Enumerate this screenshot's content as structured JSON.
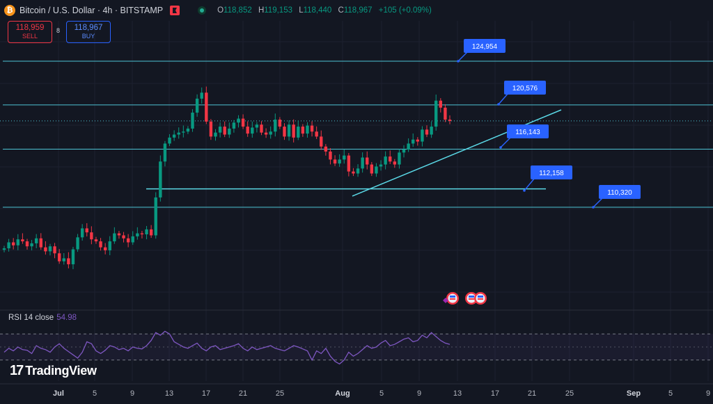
{
  "header": {
    "coin_glyph": "₿",
    "symbol_title": "Bitcoin / U.S. Dollar · 4h · BITSTAMP",
    "ohlc": {
      "o_label": "O",
      "o": "118,852",
      "h_label": "H",
      "h": "119,153",
      "l_label": "L",
      "l": "118,440",
      "c_label": "C",
      "c": "118,967",
      "change": "+105 (+0.09%)"
    }
  },
  "trade": {
    "sell_price": "118,959",
    "sell_label": "SELL",
    "spread": "8",
    "buy_price": "118,967",
    "buy_label": "BUY"
  },
  "rsi": {
    "label": "RSI 14 close",
    "value": "54.98",
    "upper_level": 70,
    "lower_level": 30,
    "series": [
      42,
      48,
      44,
      50,
      46,
      45,
      40,
      52,
      48,
      46,
      42,
      50,
      55,
      48,
      43,
      38,
      33,
      42,
      58,
      55,
      44,
      40,
      45,
      52,
      50,
      46,
      48,
      44,
      50,
      48,
      47,
      52,
      60,
      72,
      68,
      74,
      70,
      58,
      54,
      50,
      48,
      52,
      56,
      48,
      44,
      50,
      52,
      46,
      48,
      50,
      52,
      55,
      48,
      44,
      50,
      46,
      48,
      50,
      52,
      48,
      46,
      44,
      48,
      52,
      50,
      47,
      44,
      30,
      44,
      40,
      48,
      36,
      28,
      24,
      30,
      42,
      36,
      40,
      46,
      52,
      48,
      50,
      56,
      60,
      52,
      54,
      58,
      62,
      64,
      58,
      60,
      68,
      64,
      72,
      66,
      60,
      56,
      54
    ]
  },
  "logo": {
    "mark": "17",
    "text": "TradingView"
  },
  "chart_data": {
    "type": "candlestick",
    "symbol": "Bitcoin / U.S. Dollar",
    "interval": "4h",
    "exchange": "BITSTAMP",
    "x_ticks": [
      "Jul",
      "5",
      "9",
      "13",
      "17",
      "21",
      "25",
      "Aug",
      "5",
      "9",
      "13",
      "17",
      "21",
      "25",
      "Sep",
      "5",
      "9"
    ],
    "price_levels": [
      {
        "label": "124,954",
        "value": 124954
      },
      {
        "label": "120,576",
        "value": 120576
      },
      {
        "label": "116,143",
        "value": 116143
      },
      {
        "label": "112,158",
        "value": 112158
      },
      {
        "label": "110,320",
        "value": 110320
      }
    ],
    "current_price": 118967,
    "closes": [
      106200,
      106800,
      106500,
      107100,
      106900,
      106400,
      106700,
      107200,
      106300,
      105900,
      106400,
      105700,
      104900,
      105200,
      104600,
      106100,
      107300,
      108200,
      107800,
      107100,
      106900,
      106300,
      106000,
      106900,
      107700,
      107500,
      107200,
      106800,
      107400,
      107700,
      107600,
      108100,
      107500,
      111300,
      114900,
      116700,
      117300,
      117600,
      117800,
      117900,
      118200,
      119800,
      121200,
      121800,
      118900,
      117400,
      117800,
      118400,
      117600,
      118200,
      118800,
      119200,
      118400,
      117700,
      118300,
      118600,
      117800,
      117600,
      117900,
      119100,
      118400,
      117400,
      118600,
      117300,
      118400,
      117700,
      118500,
      117900,
      117400,
      116400,
      115900,
      115100,
      114700,
      115100,
      115500,
      113900,
      113700,
      114200,
      115300,
      114600,
      113700,
      114400,
      114600,
      115400,
      114900,
      114600,
      115800,
      116100,
      116700,
      117100,
      116900,
      118100,
      117600,
      118400,
      121000,
      120300,
      119100,
      118967
    ],
    "events_count": 3
  }
}
